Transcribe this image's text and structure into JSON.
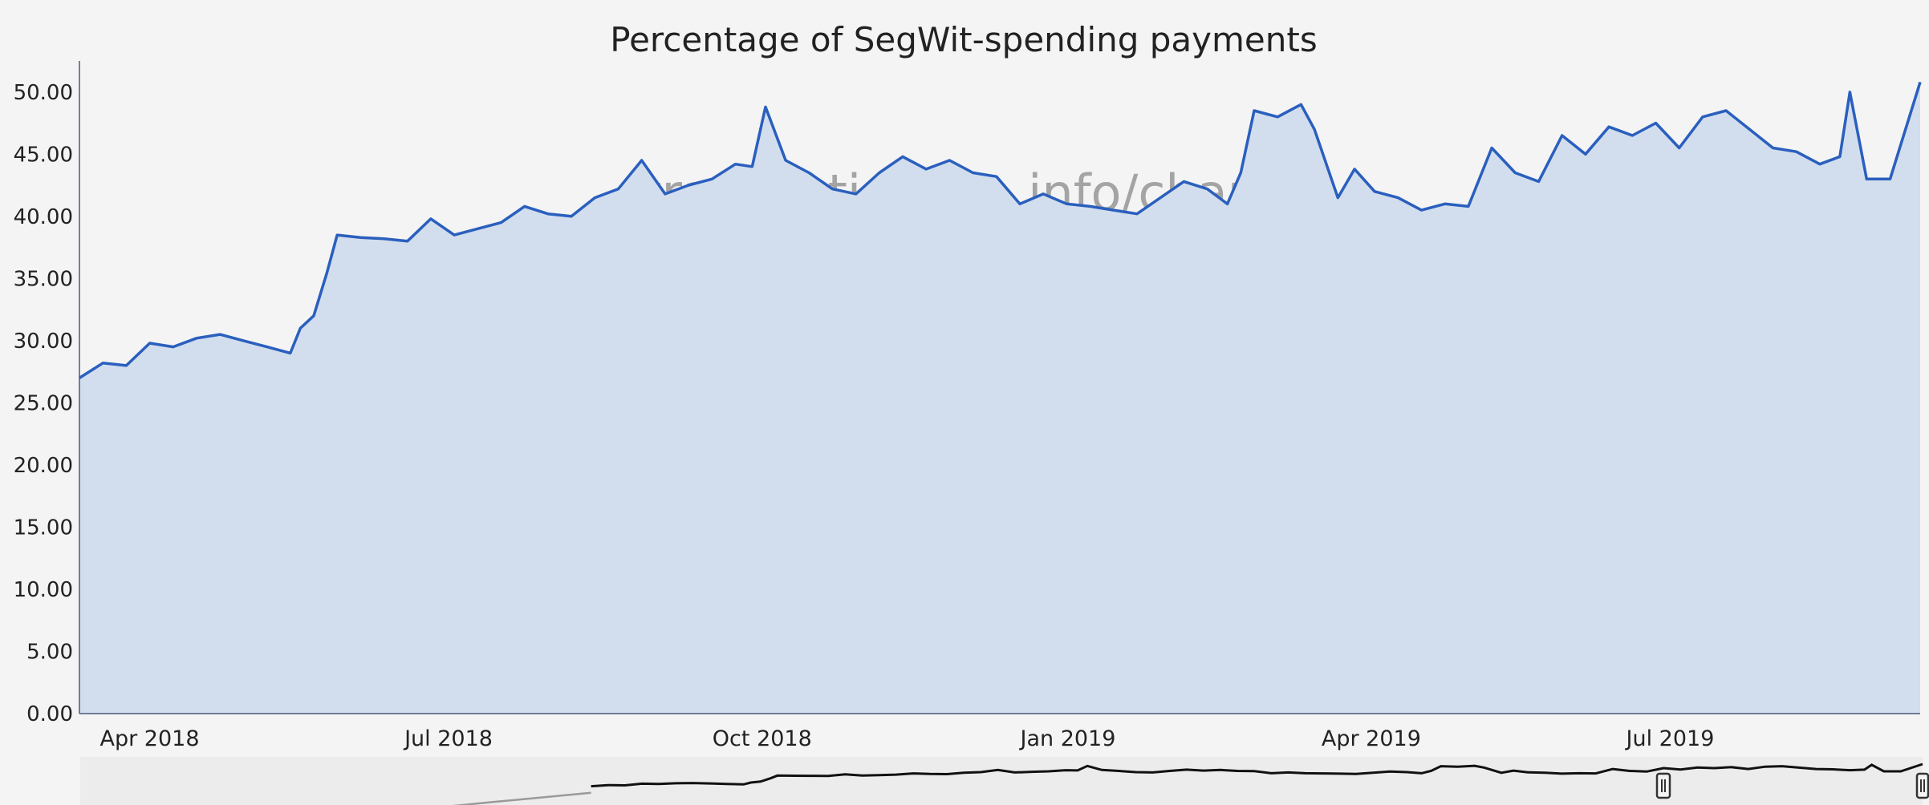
{
  "watermark": {
    "part1": "transaction",
    "part2": "fee",
    "part3": ".info/charts"
  },
  "colors": {
    "line": "#2a5fbe",
    "fill": "#d2deee",
    "background": "#f4f4f4",
    "axis": "#4a5a7a",
    "watermark_accent": "#e8a0b0"
  },
  "chart_data": {
    "type": "area",
    "title": "Percentage of SegWit-spending payments",
    "xlabel": "",
    "ylabel": "",
    "ylim": [
      0,
      52.5
    ],
    "yticks": [
      "0.00",
      "5.00",
      "10.00",
      "15.00",
      "20.00",
      "25.00",
      "30.00",
      "35.00",
      "40.00",
      "45.00",
      "50.00"
    ],
    "xlim": [
      "2018-03-23",
      "2019-09-24"
    ],
    "xticks": [
      {
        "date": "2018-04-01",
        "label": "Apr 2018"
      },
      {
        "date": "2018-07-01",
        "label": "Jul 2018"
      },
      {
        "date": "2018-10-01",
        "label": "Oct 2018"
      },
      {
        "date": "2019-01-01",
        "label": "Jan 2019"
      },
      {
        "date": "2019-04-01",
        "label": "Apr 2019"
      },
      {
        "date": "2019-07-01",
        "label": "Jul 2019"
      }
    ],
    "grid": false,
    "series": [
      {
        "x": [
          "2018-03-23",
          "2018-03-30",
          "2018-04-06",
          "2018-04-13",
          "2018-04-20",
          "2018-04-27",
          "2018-05-04",
          "2018-05-11",
          "2018-05-18",
          "2018-05-25",
          "2018-05-28",
          "2018-06-01",
          "2018-06-05",
          "2018-06-08",
          "2018-06-15",
          "2018-06-22",
          "2018-06-29",
          "2018-07-06",
          "2018-07-13",
          "2018-07-20",
          "2018-07-27",
          "2018-08-03",
          "2018-08-10",
          "2018-08-17",
          "2018-08-24",
          "2018-08-31",
          "2018-09-07",
          "2018-09-14",
          "2018-09-21",
          "2018-09-28",
          "2018-10-05",
          "2018-10-10",
          "2018-10-14",
          "2018-10-20",
          "2018-10-27",
          "2018-11-03",
          "2018-11-10",
          "2018-11-17",
          "2018-11-24",
          "2018-12-01",
          "2018-12-08",
          "2018-12-15",
          "2018-12-22",
          "2018-12-29",
          "2019-01-05",
          "2019-01-12",
          "2019-01-19",
          "2019-01-26",
          "2019-02-02",
          "2019-02-09",
          "2019-02-16",
          "2019-02-23",
          "2019-03-01",
          "2019-03-05",
          "2019-03-09",
          "2019-03-16",
          "2019-03-23",
          "2019-03-27",
          "2019-04-03",
          "2019-04-08",
          "2019-04-14",
          "2019-04-21",
          "2019-04-28",
          "2019-05-05",
          "2019-05-12",
          "2019-05-19",
          "2019-05-26",
          "2019-06-02",
          "2019-06-09",
          "2019-06-16",
          "2019-06-23",
          "2019-06-30",
          "2019-07-07",
          "2019-07-14",
          "2019-07-21",
          "2019-07-28",
          "2019-08-04",
          "2019-08-11",
          "2019-08-18",
          "2019-08-25",
          "2019-08-31",
          "2019-09-03",
          "2019-09-08",
          "2019-09-15",
          "2019-09-24"
        ],
        "values": [
          27.0,
          28.2,
          28.0,
          29.8,
          29.5,
          30.2,
          30.5,
          30.0,
          29.5,
          29.0,
          31.0,
          32.0,
          35.5,
          38.5,
          38.3,
          38.2,
          38.0,
          39.8,
          38.5,
          39.0,
          39.5,
          40.8,
          40.2,
          40.0,
          41.5,
          42.2,
          44.5,
          41.8,
          42.5,
          43.0,
          44.2,
          44.0,
          48.8,
          44.5,
          43.5,
          42.2,
          41.8,
          43.5,
          44.8,
          43.8,
          44.5,
          43.5,
          43.2,
          41.0,
          41.8,
          41.0,
          40.8,
          40.5,
          40.2,
          41.5,
          42.8,
          42.2,
          41.0,
          43.5,
          48.5,
          48.0,
          49.0,
          47.0,
          41.5,
          43.8,
          42.0,
          41.5,
          40.5,
          41.0,
          40.8,
          45.5,
          43.5,
          42.8,
          46.5,
          45.0,
          47.2,
          46.5,
          47.5,
          45.5,
          48.0,
          48.5,
          47.0,
          45.5,
          45.2,
          44.2,
          44.8,
          50.0,
          43.0,
          43.0,
          50.8
        ]
      }
    ]
  }
}
